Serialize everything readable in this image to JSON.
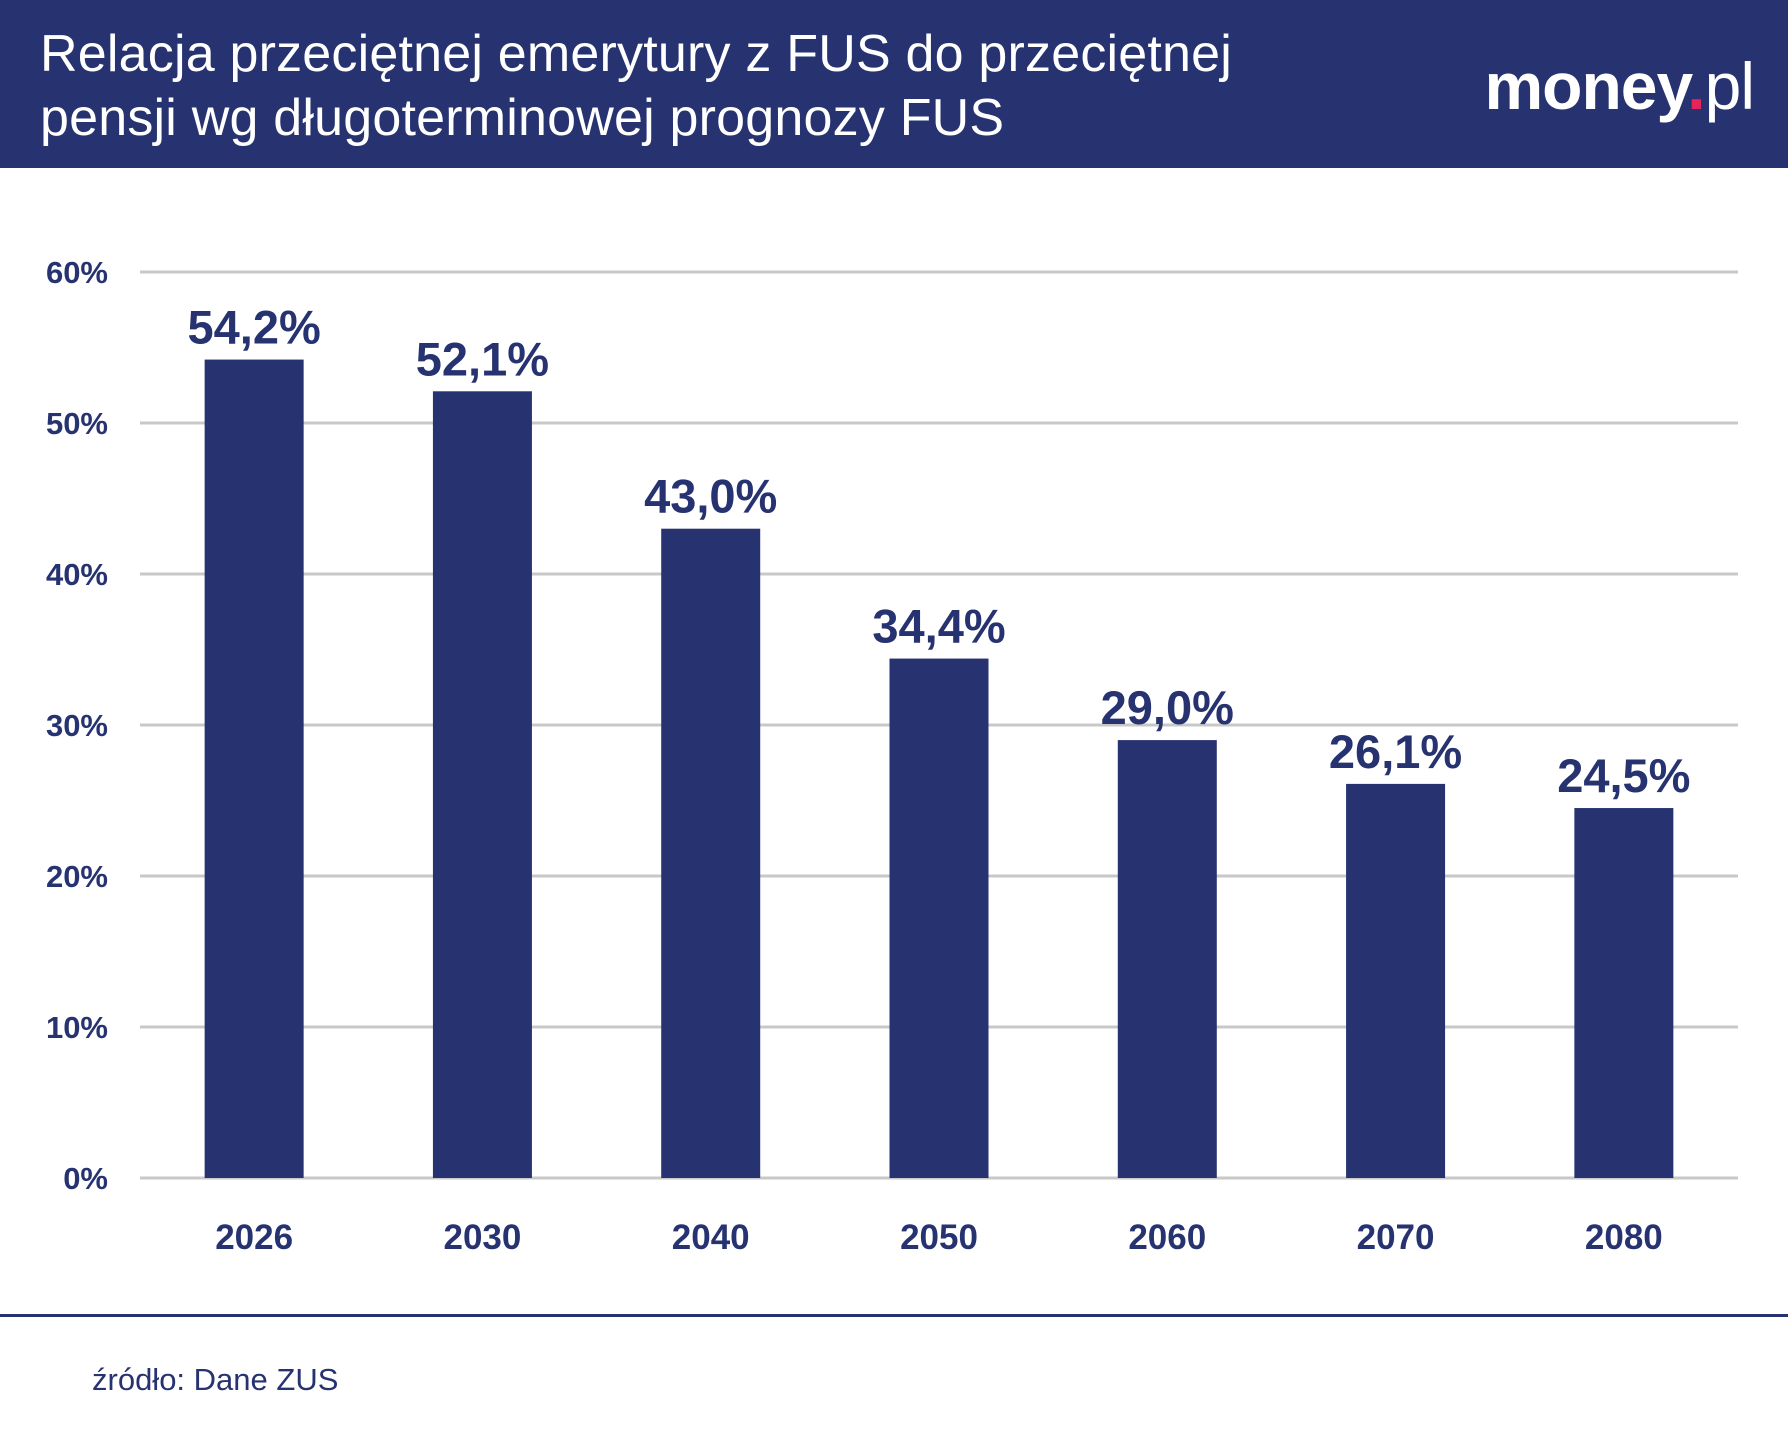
{
  "header": {
    "title_line1": "Relacja przeciętnej emerytury z FUS do przeciętnej",
    "title_line2": "pensji wg długoterminowej prognozy FUS",
    "logo_main": "money",
    "logo_dot": ".",
    "logo_suffix": "pl"
  },
  "footer": {
    "source": "źródło: Dane ZUS"
  },
  "colors": {
    "bar": "#263370",
    "grid": "#c8c8c8",
    "text": "#263370",
    "accent": "#e5245a"
  },
  "chart_data": {
    "type": "bar",
    "title": "Relacja przeciętnej emerytury z FUS do przeciętnej pensji wg długoterminowej prognozy FUS",
    "categories": [
      "2026",
      "2030",
      "2040",
      "2050",
      "2060",
      "2070",
      "2080"
    ],
    "values": [
      54.2,
      52.1,
      43.0,
      34.4,
      29.0,
      26.1,
      24.5
    ],
    "value_labels": [
      "54,2%",
      "52,1%",
      "43,0%",
      "34,4%",
      "29,0%",
      "26,1%",
      "24,5%"
    ],
    "yticks": [
      0,
      10,
      20,
      30,
      40,
      50,
      60
    ],
    "ytick_labels": [
      "0%",
      "10%",
      "20%",
      "30%",
      "40%",
      "50%",
      "60%"
    ],
    "ylim": [
      0,
      60
    ],
    "xlabel": "",
    "ylabel": "",
    "grid": true,
    "legend": false
  }
}
